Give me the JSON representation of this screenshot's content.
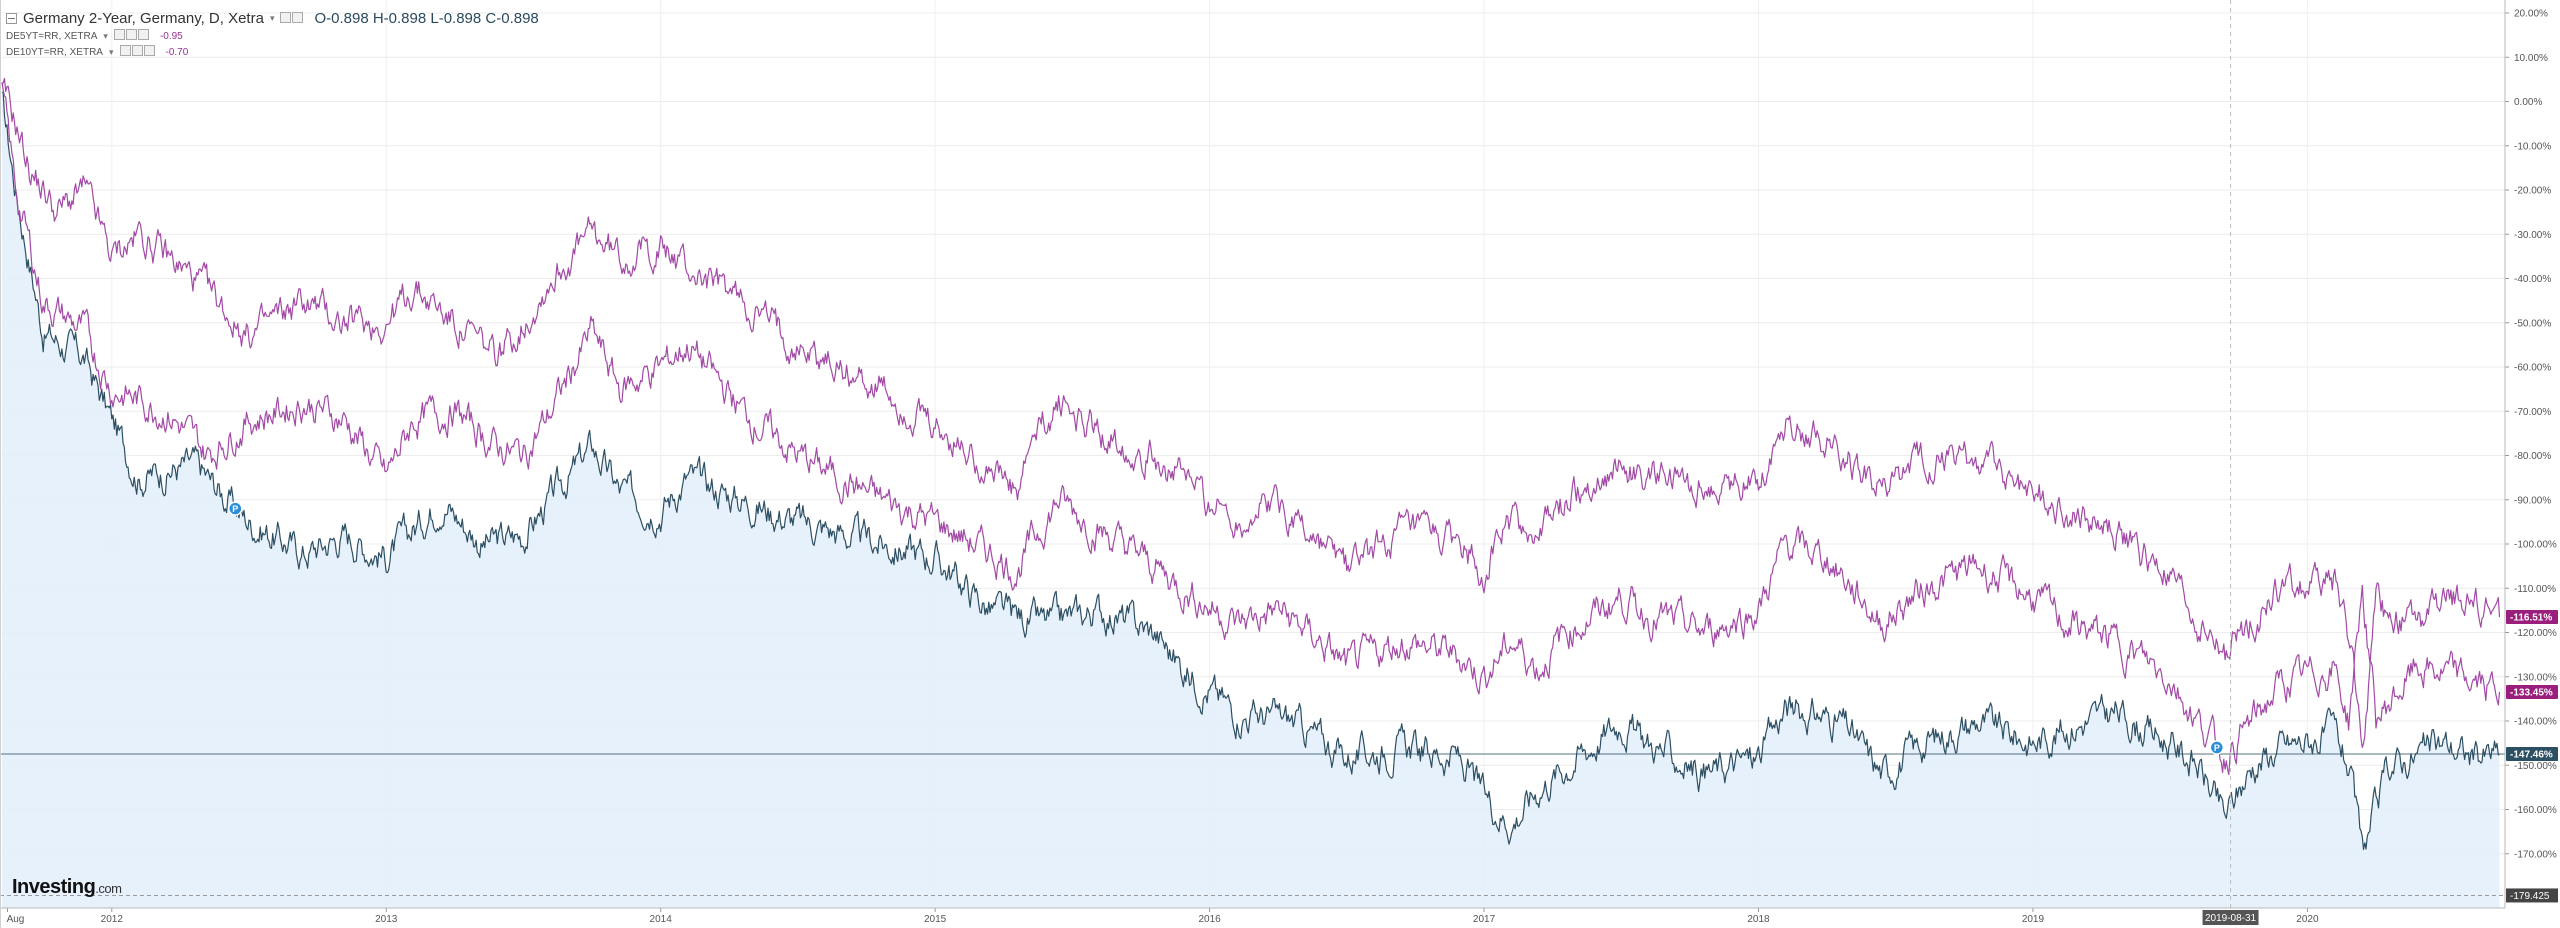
{
  "legend": {
    "main_title": "Germany 2-Year, Germany, D, Xetra",
    "ohlc": "O-0.898  H-0.898  L-0.898  C-0.898",
    "series2_title": "DE5YT=RR, XETRA",
    "series2_value": "-0.95",
    "series3_title": "DE10YT=RR, XETRA",
    "series3_value": "-0.70"
  },
  "logo": {
    "brand": "Investing",
    "suffix": ".com"
  },
  "colors": {
    "main": "#2d4f63",
    "fill": "#e3eefa",
    "purple": "#a24aa6",
    "purple_dark": "#9a1f7d",
    "crosshair_label": "#555555"
  },
  "chart_data": {
    "type": "line",
    "x_labels": [
      "Aug",
      "2012",
      "2013",
      "2014",
      "2015",
      "2016",
      "2017",
      "2018",
      "2019",
      "2020"
    ],
    "x_range": [
      "2011-08",
      "2020-09"
    ],
    "y_ticks": [
      "20.00%",
      "10.00%",
      "0.00%",
      "-10.00%",
      "-20.00%",
      "-30.00%",
      "-40.00%",
      "-50.00%",
      "-60.00%",
      "-70.00%",
      "-80.00%",
      "-90.00%",
      "-100.00%",
      "-110.00%",
      "-120.00%",
      "-130.00%",
      "-140.00%",
      "-150.00%",
      "-160.00%",
      "-170.00%"
    ],
    "ylim": [
      -180,
      20
    ],
    "y_unit": "%",
    "grid": true,
    "series": [
      {
        "key": "de2y",
        "values": [
          [
            2011.6,
            0
          ],
          [
            2011.65,
            -20
          ],
          [
            2011.75,
            -52
          ],
          [
            2011.9,
            -58
          ],
          [
            2012.0,
            -72
          ],
          [
            2012.1,
            -85
          ],
          [
            2012.3,
            -82
          ],
          [
            2012.5,
            -95
          ],
          [
            2012.7,
            -102
          ],
          [
            2012.85,
            -98
          ],
          [
            2013.0,
            -103
          ],
          [
            2013.2,
            -90
          ],
          [
            2013.35,
            -100
          ],
          [
            2013.5,
            -98
          ],
          [
            2013.6,
            -90
          ],
          [
            2013.75,
            -78
          ],
          [
            2013.85,
            -88
          ],
          [
            2014.0,
            -92
          ],
          [
            2014.1,
            -85
          ],
          [
            2014.3,
            -90
          ],
          [
            2014.5,
            -95
          ],
          [
            2014.8,
            -100
          ],
          [
            2015.0,
            -103
          ],
          [
            2015.2,
            -115
          ],
          [
            2015.4,
            -118
          ],
          [
            2015.6,
            -115
          ],
          [
            2015.8,
            -120
          ],
          [
            2015.9,
            -128
          ],
          [
            2016.1,
            -138
          ],
          [
            2016.3,
            -140
          ],
          [
            2016.5,
            -148
          ],
          [
            2016.7,
            -146
          ],
          [
            2016.9,
            -148
          ],
          [
            2017.0,
            -157
          ],
          [
            2017.1,
            -163
          ],
          [
            2017.2,
            -155
          ],
          [
            2017.3,
            -150
          ],
          [
            2017.5,
            -140
          ],
          [
            2017.6,
            -145
          ],
          [
            2017.8,
            -152
          ],
          [
            2018.0,
            -148
          ],
          [
            2018.1,
            -137
          ],
          [
            2018.3,
            -140
          ],
          [
            2018.45,
            -152
          ],
          [
            2018.6,
            -145
          ],
          [
            2018.8,
            -140
          ],
          [
            2019.0,
            -145
          ],
          [
            2019.1,
            -142
          ],
          [
            2019.3,
            -138
          ],
          [
            2019.5,
            -145
          ],
          [
            2019.6,
            -150
          ],
          [
            2019.7,
            -162
          ],
          [
            2019.8,
            -150
          ],
          [
            2019.9,
            -146
          ],
          [
            2020.1,
            -143
          ],
          [
            2020.15,
            -150
          ],
          [
            2020.2,
            -170
          ],
          [
            2020.3,
            -150
          ],
          [
            2020.5,
            -145
          ],
          [
            2020.6,
            -148
          ],
          [
            2020.7,
            -147.46
          ]
        ],
        "last_label": "-147.46%"
      },
      {
        "key": "de5y",
        "values": [
          [
            2011.6,
            2
          ],
          [
            2011.65,
            -20
          ],
          [
            2011.75,
            -45
          ],
          [
            2011.9,
            -52
          ],
          [
            2012.0,
            -65
          ],
          [
            2012.2,
            -70
          ],
          [
            2012.35,
            -80
          ],
          [
            2012.5,
            -72
          ],
          [
            2012.7,
            -68
          ],
          [
            2012.85,
            -72
          ],
          [
            2013.0,
            -85
          ],
          [
            2013.1,
            -72
          ],
          [
            2013.25,
            -70
          ],
          [
            2013.4,
            -78
          ],
          [
            2013.5,
            -80
          ],
          [
            2013.6,
            -70
          ],
          [
            2013.75,
            -52
          ],
          [
            2013.85,
            -65
          ],
          [
            2014.0,
            -60
          ],
          [
            2014.1,
            -55
          ],
          [
            2014.3,
            -70
          ],
          [
            2014.5,
            -80
          ],
          [
            2014.8,
            -90
          ],
          [
            2015.0,
            -95
          ],
          [
            2015.2,
            -102
          ],
          [
            2015.3,
            -106
          ],
          [
            2015.35,
            -100
          ],
          [
            2015.45,
            -90
          ],
          [
            2015.6,
            -97
          ],
          [
            2015.8,
            -105
          ],
          [
            2015.9,
            -110
          ],
          [
            2016.1,
            -118
          ],
          [
            2016.25,
            -115
          ],
          [
            2016.4,
            -122
          ],
          [
            2016.5,
            -128
          ],
          [
            2016.7,
            -122
          ],
          [
            2016.9,
            -125
          ],
          [
            2017.0,
            -130
          ],
          [
            2017.1,
            -122
          ],
          [
            2017.2,
            -128
          ],
          [
            2017.3,
            -120
          ],
          [
            2017.5,
            -112
          ],
          [
            2017.6,
            -116
          ],
          [
            2017.8,
            -120
          ],
          [
            2018.0,
            -115
          ],
          [
            2018.1,
            -100
          ],
          [
            2018.25,
            -103
          ],
          [
            2018.45,
            -118
          ],
          [
            2018.6,
            -110
          ],
          [
            2018.8,
            -105
          ],
          [
            2019.0,
            -112
          ],
          [
            2019.1,
            -117
          ],
          [
            2019.3,
            -122
          ],
          [
            2019.5,
            -130
          ],
          [
            2019.6,
            -140
          ],
          [
            2019.7,
            -148
          ],
          [
            2019.8,
            -140
          ],
          [
            2019.9,
            -132
          ],
          [
            2020.1,
            -128
          ],
          [
            2020.15,
            -140
          ],
          [
            2020.2,
            -110
          ],
          [
            2020.25,
            -140
          ],
          [
            2020.4,
            -128
          ],
          [
            2020.55,
            -130
          ],
          [
            2020.7,
            -133.45
          ]
        ],
        "last_label": "-133.45%"
      },
      {
        "key": "de10y",
        "values": [
          [
            2011.6,
            2
          ],
          [
            2011.65,
            -5
          ],
          [
            2011.7,
            -15
          ],
          [
            2011.8,
            -25
          ],
          [
            2011.9,
            -20
          ],
          [
            2012.0,
            -35
          ],
          [
            2012.1,
            -30
          ],
          [
            2012.3,
            -40
          ],
          [
            2012.5,
            -53
          ],
          [
            2012.7,
            -45
          ],
          [
            2012.85,
            -50
          ],
          [
            2013.0,
            -50
          ],
          [
            2013.1,
            -42
          ],
          [
            2013.25,
            -50
          ],
          [
            2013.4,
            -58
          ],
          [
            2013.5,
            -50
          ],
          [
            2013.6,
            -40
          ],
          [
            2013.75,
            -30
          ],
          [
            2013.85,
            -35
          ],
          [
            2014.0,
            -33
          ],
          [
            2014.1,
            -38
          ],
          [
            2014.3,
            -45
          ],
          [
            2014.5,
            -55
          ],
          [
            2014.8,
            -65
          ],
          [
            2015.0,
            -75
          ],
          [
            2015.2,
            -82
          ],
          [
            2015.3,
            -90
          ],
          [
            2015.35,
            -78
          ],
          [
            2015.45,
            -68
          ],
          [
            2015.6,
            -75
          ],
          [
            2015.8,
            -80
          ],
          [
            2015.9,
            -85
          ],
          [
            2016.1,
            -95
          ],
          [
            2016.25,
            -90
          ],
          [
            2016.4,
            -100
          ],
          [
            2016.5,
            -105
          ],
          [
            2016.7,
            -98
          ],
          [
            2016.9,
            -100
          ],
          [
            2017.0,
            -105
          ],
          [
            2017.1,
            -95
          ],
          [
            2017.2,
            -98
          ],
          [
            2017.3,
            -90
          ],
          [
            2017.5,
            -82
          ],
          [
            2017.6,
            -85
          ],
          [
            2017.8,
            -88
          ],
          [
            2018.0,
            -85
          ],
          [
            2018.1,
            -72
          ],
          [
            2018.25,
            -76
          ],
          [
            2018.45,
            -88
          ],
          [
            2018.6,
            -82
          ],
          [
            2018.8,
            -80
          ],
          [
            2019.0,
            -88
          ],
          [
            2019.1,
            -92
          ],
          [
            2019.3,
            -97
          ],
          [
            2019.5,
            -108
          ],
          [
            2019.6,
            -118
          ],
          [
            2019.7,
            -125
          ],
          [
            2019.8,
            -117
          ],
          [
            2019.9,
            -110
          ],
          [
            2020.1,
            -108
          ],
          [
            2020.15,
            -120
          ],
          [
            2020.2,
            -145
          ],
          [
            2020.25,
            -115
          ],
          [
            2020.4,
            -118
          ],
          [
            2020.55,
            -112
          ],
          [
            2020.7,
            -116.51
          ]
        ],
        "last_label": "-116.51%"
      }
    ],
    "horizontal_line": {
      "value": -147.46
    },
    "min_line": {
      "value": -179.425,
      "label": "-179.425"
    },
    "crosshair": {
      "x": 2019.72,
      "label": "2019-08-31"
    },
    "event_markers": [
      {
        "x": 2012.45,
        "y": -92,
        "label": "P"
      },
      {
        "x": 2019.67,
        "y": -146,
        "label": "P"
      }
    ]
  }
}
